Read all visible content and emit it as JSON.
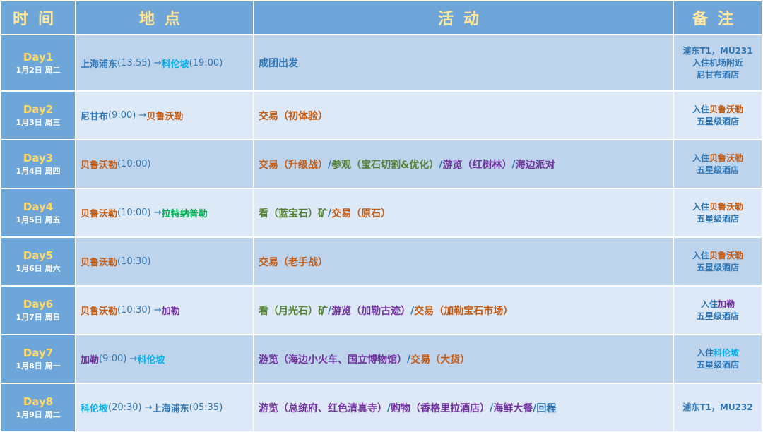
{
  "colors": {
    "blue": "#2e75b6",
    "orange": "#c55a11",
    "green": "#548235",
    "purple": "#7030a0",
    "cyan": "#00b0f0",
    "brightgreen": "#00b050"
  },
  "header": {
    "time": "时间",
    "place": "地点",
    "activity": "活动",
    "note": "备注"
  },
  "rows": [
    {
      "day": "Day1",
      "date": "1月2日 周二",
      "place": [
        {
          "t": "上海浦东",
          "c": "blue"
        },
        {
          "t": "(13:55) → ",
          "c": "blue"
        },
        {
          "t": "科伦坡",
          "c": "cyan"
        },
        {
          "t": "(19:00)",
          "c": "blue"
        }
      ],
      "activity": [
        {
          "t": "成团出发",
          "c": "blue"
        }
      ],
      "note": [
        [
          {
            "t": "浦东T1，MU231",
            "c": "blue"
          }
        ],
        [
          {
            "t": "入住机场附近",
            "c": "blue"
          }
        ],
        [
          {
            "t": "尼甘布酒店",
            "c": "blue"
          }
        ]
      ]
    },
    {
      "day": "Day2",
      "date": "1月3日 周三",
      "place": [
        {
          "t": "尼甘布",
          "c": "blue"
        },
        {
          "t": "(9:00) → ",
          "c": "blue"
        },
        {
          "t": "贝鲁沃勒",
          "c": "orange"
        }
      ],
      "activity": [
        {
          "t": "交易（初体验）",
          "c": "orange"
        }
      ],
      "note": [
        [
          {
            "t": "入住",
            "c": "blue"
          },
          {
            "t": "贝鲁沃勒",
            "c": "orange"
          }
        ],
        [
          {
            "t": "五星级酒店",
            "c": "blue"
          }
        ]
      ]
    },
    {
      "day": "Day3",
      "date": "1月4日 周四",
      "place": [
        {
          "t": "贝鲁沃勒",
          "c": "orange"
        },
        {
          "t": "(10:00)",
          "c": "blue"
        }
      ],
      "activity": [
        {
          "t": "交易（升级战）",
          "c": "orange"
        },
        {
          "t": " / ",
          "c": "blue"
        },
        {
          "t": "参观（宝石切割&优化）",
          "c": "green"
        },
        {
          "t": " / ",
          "c": "blue"
        },
        {
          "t": "游览（红树林）",
          "c": "purple"
        },
        {
          "t": " / ",
          "c": "blue"
        },
        {
          "t": "海边派对",
          "c": "purple"
        }
      ],
      "note": [
        [
          {
            "t": "入住",
            "c": "blue"
          },
          {
            "t": "贝鲁沃勒",
            "c": "orange"
          }
        ],
        [
          {
            "t": "五星级酒店",
            "c": "blue"
          }
        ]
      ]
    },
    {
      "day": "Day4",
      "date": "1月5日 周五",
      "place": [
        {
          "t": "贝鲁沃勒",
          "c": "orange"
        },
        {
          "t": "(10:00) → ",
          "c": "blue"
        },
        {
          "t": "拉特纳普勒",
          "c": "brightgreen"
        }
      ],
      "activity": [
        {
          "t": "看（蓝宝石）矿",
          "c": "green"
        },
        {
          "t": " / ",
          "c": "blue"
        },
        {
          "t": "交易（原石）",
          "c": "orange"
        }
      ],
      "note": [
        [
          {
            "t": "入住",
            "c": "blue"
          },
          {
            "t": "贝鲁沃勒",
            "c": "orange"
          }
        ],
        [
          {
            "t": "五星级酒店",
            "c": "blue"
          }
        ]
      ]
    },
    {
      "day": "Day5",
      "date": "1月6日 周六",
      "place": [
        {
          "t": "贝鲁沃勒",
          "c": "orange"
        },
        {
          "t": "(10:30)",
          "c": "blue"
        }
      ],
      "activity": [
        {
          "t": "交易（老手战）",
          "c": "orange"
        }
      ],
      "note": [
        [
          {
            "t": "入住",
            "c": "blue"
          },
          {
            "t": "贝鲁沃勒",
            "c": "orange"
          }
        ],
        [
          {
            "t": "五星级酒店",
            "c": "blue"
          }
        ]
      ]
    },
    {
      "day": "Day6",
      "date": "1月7日 周日",
      "place": [
        {
          "t": "贝鲁沃勒",
          "c": "orange"
        },
        {
          "t": "(10:30) → ",
          "c": "blue"
        },
        {
          "t": "加勒",
          "c": "purple"
        }
      ],
      "activity": [
        {
          "t": "看（月光石）矿",
          "c": "green"
        },
        {
          "t": " / ",
          "c": "blue"
        },
        {
          "t": "游览（加勒古迹）",
          "c": "purple"
        },
        {
          "t": " / ",
          "c": "blue"
        },
        {
          "t": "交易（加勒宝石市场）",
          "c": "orange"
        }
      ],
      "note": [
        [
          {
            "t": "入住",
            "c": "blue"
          },
          {
            "t": "加勒",
            "c": "purple"
          }
        ],
        [
          {
            "t": "五星级酒店",
            "c": "blue"
          }
        ]
      ]
    },
    {
      "day": "Day7",
      "date": "1月8日 周一",
      "place": [
        {
          "t": "加勒",
          "c": "purple"
        },
        {
          "t": "(9:00) → ",
          "c": "blue"
        },
        {
          "t": "科伦坡",
          "c": "cyan"
        }
      ],
      "activity": [
        {
          "t": "游览（海边小火车、国立博物馆）",
          "c": "purple"
        },
        {
          "t": " / ",
          "c": "blue"
        },
        {
          "t": "交易（大货）",
          "c": "orange"
        }
      ],
      "note": [
        [
          {
            "t": "入住",
            "c": "blue"
          },
          {
            "t": "科伦坡",
            "c": "cyan"
          }
        ],
        [
          {
            "t": "五星级酒店",
            "c": "blue"
          }
        ]
      ]
    },
    {
      "day": "Day8",
      "date": "1月9日 周二",
      "place": [
        {
          "t": "科伦坡",
          "c": "cyan"
        },
        {
          "t": "(20:30) → ",
          "c": "blue"
        },
        {
          "t": "上海浦东",
          "c": "blue"
        },
        {
          "t": "(05:35)",
          "c": "blue"
        }
      ],
      "activity": [
        {
          "t": "游览（总统府、红色清真寺）",
          "c": "purple"
        },
        {
          "t": " / ",
          "c": "blue"
        },
        {
          "t": "购物（香格里拉酒店）",
          "c": "purple"
        },
        {
          "t": " / ",
          "c": "blue"
        },
        {
          "t": "海鲜大餐",
          "c": "purple"
        },
        {
          "t": " / ",
          "c": "blue"
        },
        {
          "t": "回程",
          "c": "blue"
        }
      ],
      "note": [
        [
          {
            "t": "浦东T1，MU232",
            "c": "blue"
          }
        ]
      ]
    }
  ]
}
